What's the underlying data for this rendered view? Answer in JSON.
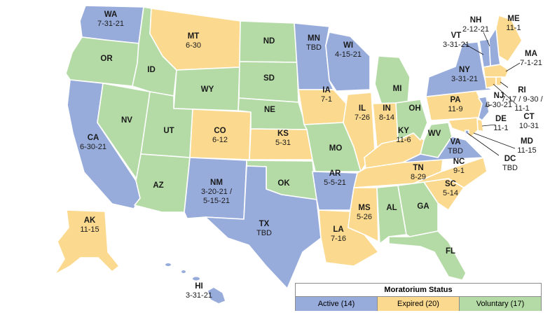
{
  "colors": {
    "active": "#98acdc",
    "expired": "#fbd98f",
    "voluntary": "#b4dba6"
  },
  "legend": {
    "title": "Moratorium Status",
    "active": "Active (14)",
    "expired": "Expired (20)",
    "voluntary": "Voluntary (17)"
  },
  "states": [
    {
      "code": "WA",
      "status": "active",
      "date": "7-31-21"
    },
    {
      "code": "OR",
      "status": "voluntary",
      "date": ""
    },
    {
      "code": "CA",
      "status": "active",
      "date": "6-30-21"
    },
    {
      "code": "NV",
      "status": "voluntary",
      "date": ""
    },
    {
      "code": "ID",
      "status": "voluntary",
      "date": ""
    },
    {
      "code": "MT",
      "status": "expired",
      "date": "6-30"
    },
    {
      "code": "WY",
      "status": "voluntary",
      "date": ""
    },
    {
      "code": "UT",
      "status": "voluntary",
      "date": ""
    },
    {
      "code": "AZ",
      "status": "voluntary",
      "date": ""
    },
    {
      "code": "CO",
      "status": "expired",
      "date": "6-12"
    },
    {
      "code": "NM",
      "status": "active",
      "date": "3-20-21 /"
    },
    {
      "code": "ND",
      "status": "voluntary",
      "date": ""
    },
    {
      "code": "SD",
      "status": "voluntary",
      "date": ""
    },
    {
      "code": "NE",
      "status": "voluntary",
      "date": ""
    },
    {
      "code": "KS",
      "status": "expired",
      "date": "5-31"
    },
    {
      "code": "OK",
      "status": "voluntary",
      "date": ""
    },
    {
      "code": "TX",
      "status": "active",
      "date": "TBD"
    },
    {
      "code": "MN",
      "status": "active",
      "date": "TBD"
    },
    {
      "code": "IA",
      "status": "expired",
      "date": "7-1"
    },
    {
      "code": "MO",
      "status": "voluntary",
      "date": ""
    },
    {
      "code": "AR",
      "status": "active",
      "date": "5-5-21"
    },
    {
      "code": "LA",
      "status": "expired",
      "date": "7-16"
    },
    {
      "code": "WI",
      "status": "active",
      "date": "4-15-21"
    },
    {
      "code": "IL",
      "status": "expired",
      "date": "7-26"
    },
    {
      "code": "MS",
      "status": "expired",
      "date": "5-26"
    },
    {
      "code": "MI",
      "status": "voluntary",
      "date": ""
    },
    {
      "code": "IN",
      "status": "expired",
      "date": "8-14"
    },
    {
      "code": "KY",
      "status": "expired",
      "date": "11-6"
    },
    {
      "code": "TN",
      "status": "expired",
      "date": "8-29"
    },
    {
      "code": "AL",
      "status": "voluntary",
      "date": ""
    },
    {
      "code": "OH",
      "status": "voluntary",
      "date": ""
    },
    {
      "code": "GA",
      "status": "voluntary",
      "date": ""
    },
    {
      "code": "FL",
      "status": "voluntary",
      "date": ""
    },
    {
      "code": "SC",
      "status": "expired",
      "date": "5-14"
    },
    {
      "code": "NC",
      "status": "expired",
      "date": "9-1"
    },
    {
      "code": "WV",
      "status": "voluntary",
      "date": ""
    },
    {
      "code": "VA",
      "status": "active",
      "date": "TBD"
    },
    {
      "code": "PA",
      "status": "expired",
      "date": "11-9"
    },
    {
      "code": "NY",
      "status": "active",
      "date": "3-31-21"
    },
    {
      "code": "ME",
      "status": "expired",
      "date": "11-1"
    },
    {
      "code": "VT",
      "status": "active",
      "date": "3-31-21"
    },
    {
      "code": "NH",
      "status": "active",
      "date": "2-12-21"
    },
    {
      "code": "MA",
      "status": "expired",
      "date": "7-1-21"
    },
    {
      "code": "RI",
      "status": "expired",
      "date": "7-17 / 9-30 /"
    },
    {
      "code": "CT",
      "status": "expired",
      "date": "10-31"
    },
    {
      "code": "NJ",
      "status": "active",
      "date": "6-30-21"
    },
    {
      "code": "DE",
      "status": "expired",
      "date": "11-1"
    },
    {
      "code": "MD",
      "status": "expired",
      "date": "11-15"
    },
    {
      "code": "DC",
      "status": "active",
      "date": "TBD"
    },
    {
      "code": "AK",
      "status": "expired",
      "date": "11-15"
    },
    {
      "code": "HI",
      "status": "active",
      "date": "3-31-21"
    }
  ],
  "extra_lines": {
    "NM": "5-15-21",
    "RI": "11-1"
  }
}
